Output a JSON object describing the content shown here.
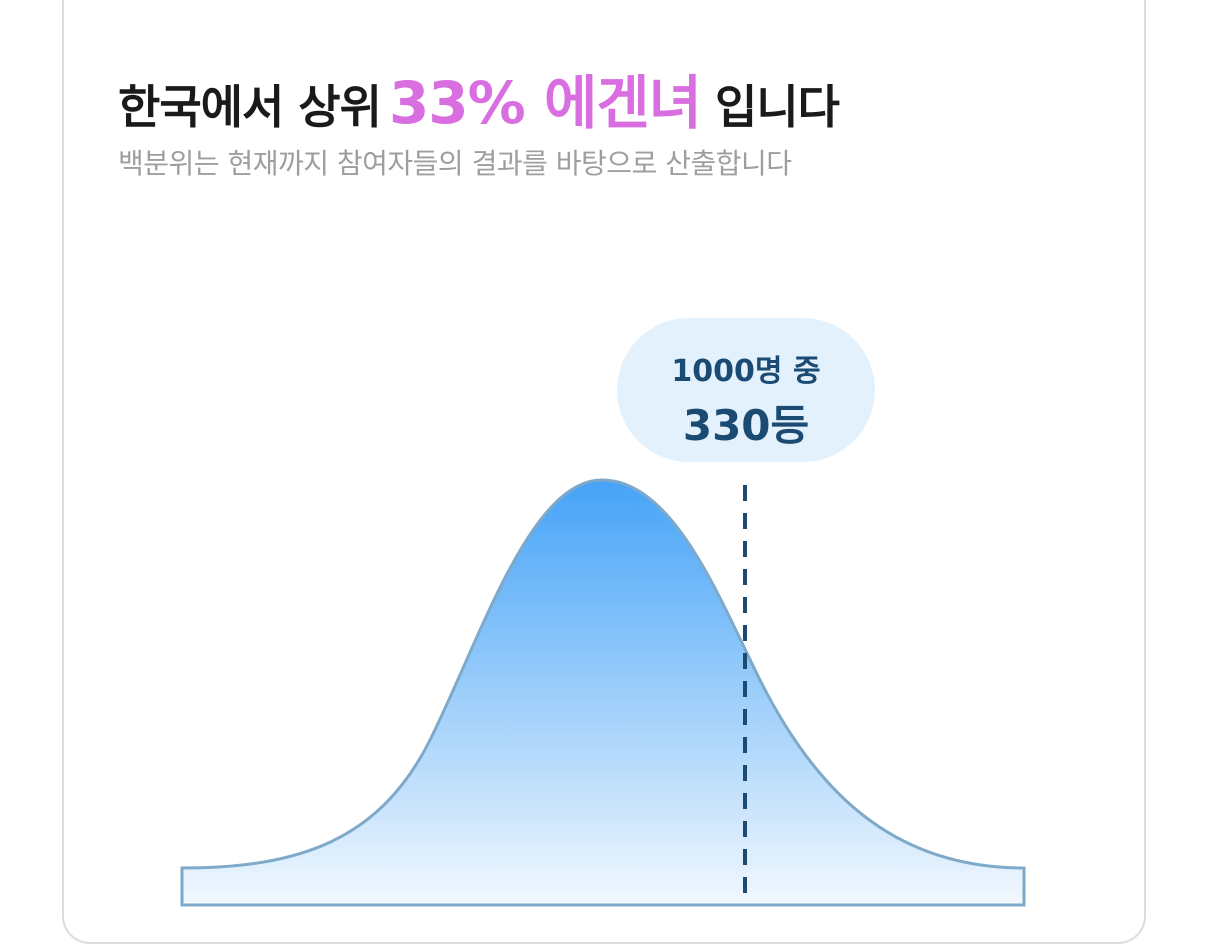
{
  "header": {
    "title_prefix": "한국에서 상위",
    "highlight": "33% 에겐녀",
    "title_suffix": "입니다",
    "subtitle": "백분위는 현재까지 참여자들의 결과를 바탕으로 산출합니다"
  },
  "badge": {
    "line1": "1000명 중",
    "line2": "330등"
  }
}
